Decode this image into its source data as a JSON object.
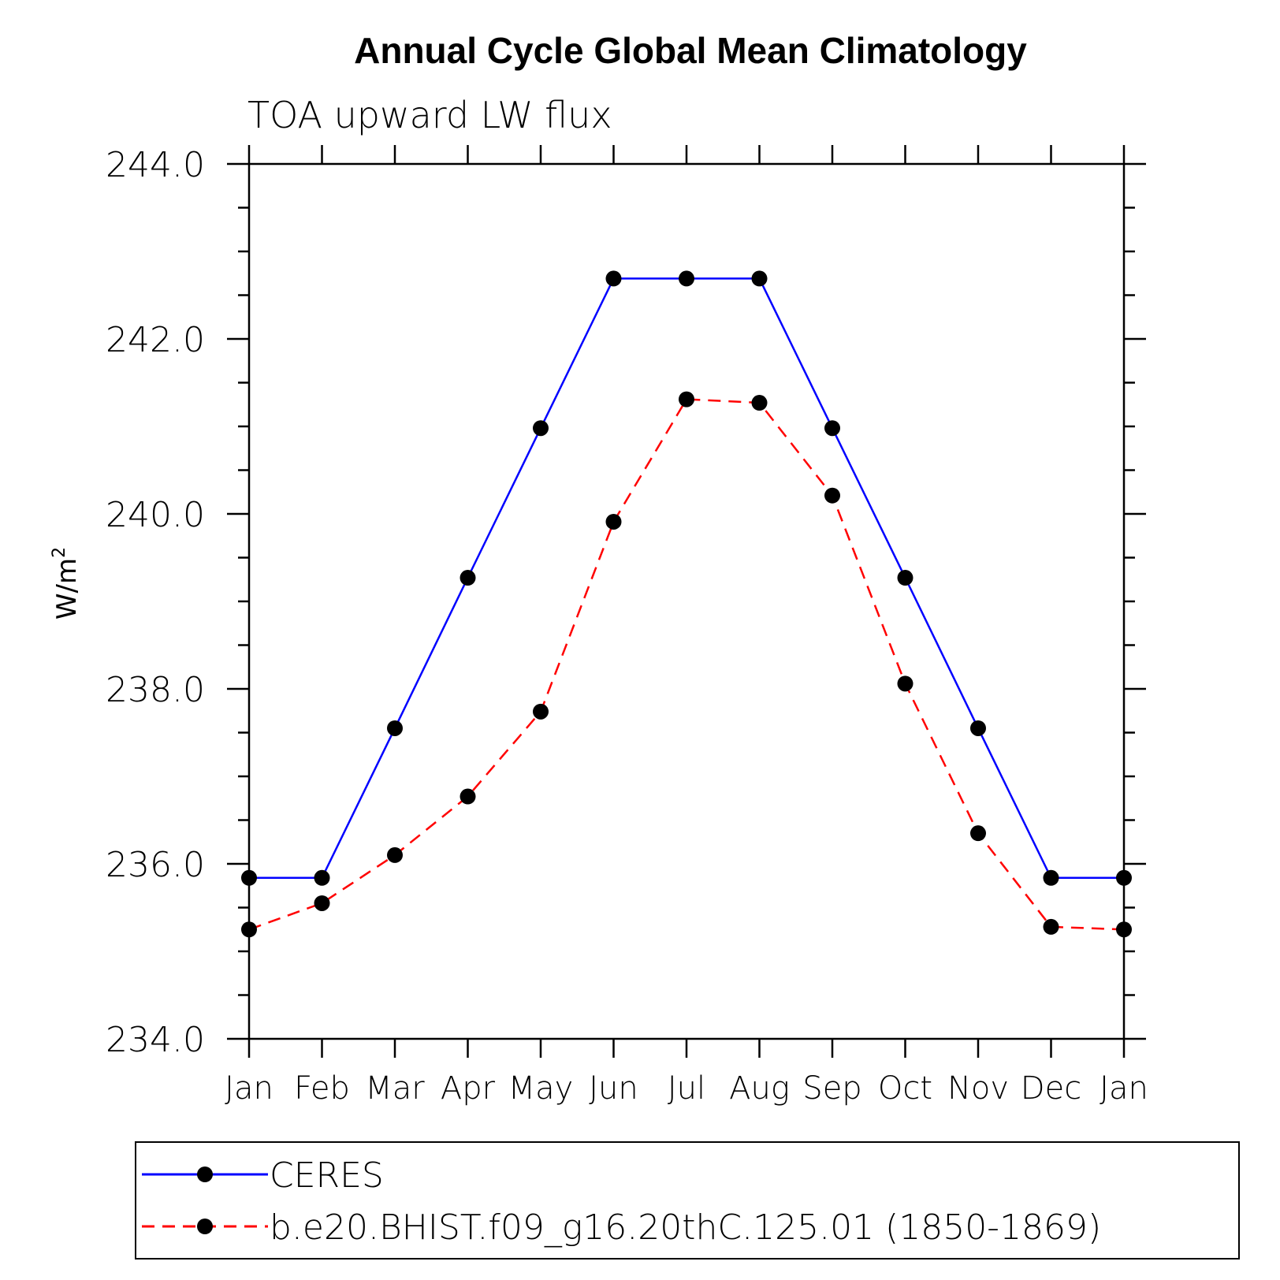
{
  "chart_data": {
    "type": "line",
    "title": "Annual Cycle Global Mean Climatology",
    "subtitle": "TOA upward LW flux",
    "ylabel": "W/m",
    "ylabel_sup": "2",
    "xlabel": "",
    "categories": [
      "Jan",
      "Feb",
      "Mar",
      "Apr",
      "May",
      "Jun",
      "Jul",
      "Aug",
      "Sep",
      "Oct",
      "Nov",
      "Dec",
      "Jan"
    ],
    "ylim": [
      234.0,
      244.0
    ],
    "yticks": [
      "234.0",
      "236.0",
      "238.0",
      "240.0",
      "242.0",
      "244.0"
    ],
    "legend_position": "bottom",
    "series": [
      {
        "name": "CERES",
        "color": "#0000ff",
        "style": "solid",
        "marker": "filled-circle",
        "values": [
          235.84,
          235.84,
          237.55,
          239.27,
          240.98,
          242.69,
          242.69,
          242.69,
          240.98,
          239.27,
          237.55,
          235.84,
          235.84
        ]
      },
      {
        "name": "b.e20.BHIST.f09_g16.20thC.125.01 (1850-1869)",
        "color": "#ff0000",
        "style": "dashed",
        "marker": "filled-circle",
        "values": [
          235.25,
          235.55,
          236.1,
          236.77,
          237.74,
          239.91,
          241.31,
          241.27,
          240.21,
          238.06,
          236.35,
          235.28,
          235.25
        ]
      }
    ]
  }
}
